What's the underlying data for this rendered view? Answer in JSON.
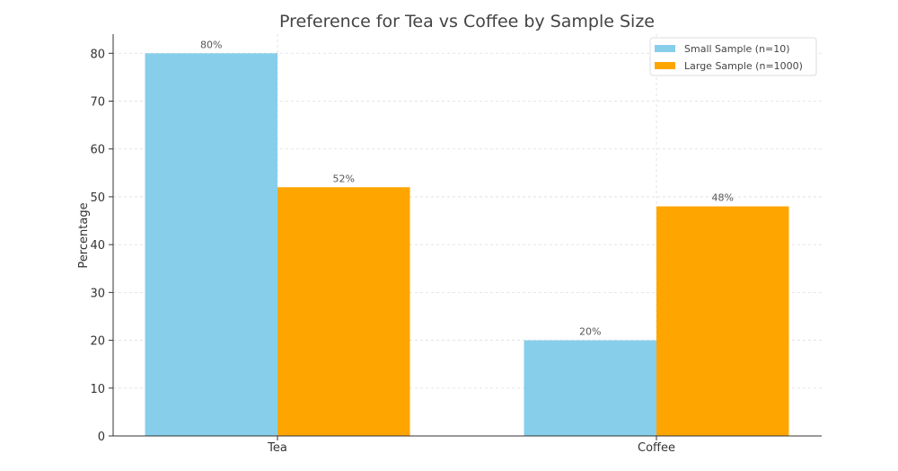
{
  "chart_data": {
    "type": "bar",
    "title": "Preference for Tea vs Coffee by Sample Size",
    "xlabel": "",
    "ylabel": "Percentage",
    "categories": [
      "Tea",
      "Coffee"
    ],
    "series": [
      {
        "name": "Small Sample (n=10)",
        "values": [
          80,
          20
        ],
        "labels": [
          "80%",
          "20%"
        ],
        "color": "#87ceeb"
      },
      {
        "name": "Large Sample (n=1000)",
        "values": [
          52,
          48
        ],
        "labels": [
          "52%",
          "48%"
        ],
        "color": "#ffa500"
      }
    ],
    "ylim": [
      0,
      84
    ],
    "yticks": [
      0,
      10,
      20,
      30,
      40,
      50,
      60,
      70,
      80
    ],
    "grid": true,
    "legend": "top-right"
  }
}
